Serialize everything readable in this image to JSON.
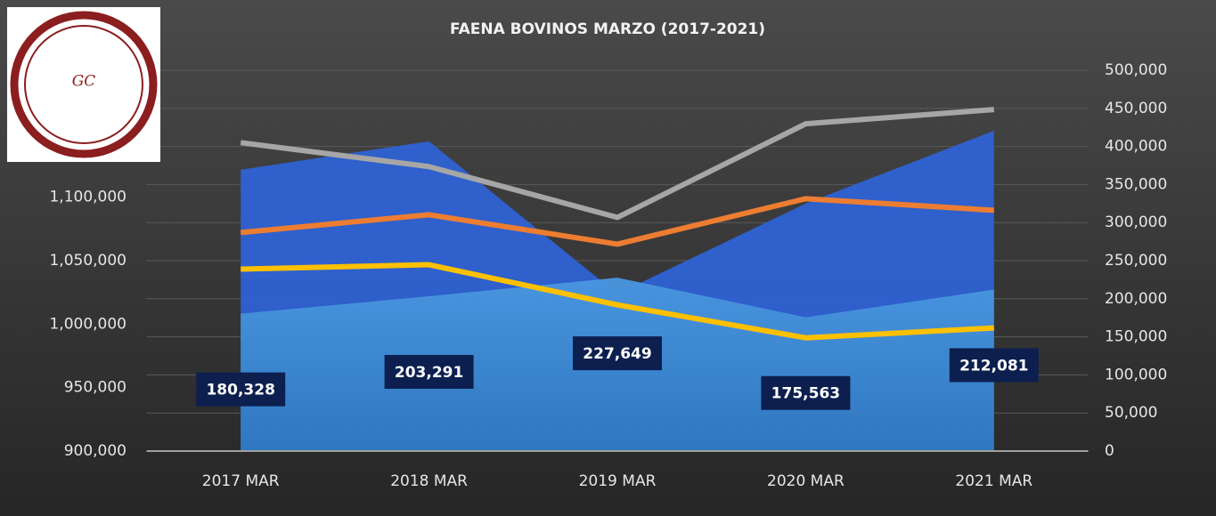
{
  "chart_data": {
    "type": "area-line",
    "title": "FAENA BOVINOS MARZO (2017-2021)",
    "logo_text": "GC",
    "categories": [
      "2017 MAR",
      "2018 MAR",
      "2019 MAR",
      "2020 MAR",
      "2021 MAR"
    ],
    "ylim": [
      900000,
      1200000
    ],
    "yticks": [
      {
        "value": 900000,
        "label": "900,000"
      },
      {
        "value": 950000,
        "label": "950,000"
      },
      {
        "value": 1000000,
        "label": "1,000,000"
      },
      {
        "value": 1050000,
        "label": "1,050,000"
      },
      {
        "value": 1100000,
        "label": "1,100,000"
      }
    ],
    "y2lim": [
      0,
      500000
    ],
    "y2ticks": [
      0,
      {
        "value": 50000,
        "label": "50,000"
      },
      {
        "value": 100000,
        "label": "100,000"
      },
      {
        "value": 150000,
        "label": "150,000"
      },
      {
        "value": 200000,
        "label": "200,000"
      },
      {
        "value": 250000,
        "label": "250,000"
      },
      {
        "value": 300000,
        "label": "300,000"
      },
      {
        "value": 350000,
        "label": "350,000"
      },
      {
        "value": 400000,
        "label": "400,000"
      },
      {
        "value": 450000,
        "label": "450,000"
      },
      {
        "value": 500000,
        "label": "500,000"
      }
    ],
    "grid": true,
    "series": [
      {
        "kind": "area",
        "axis": "y",
        "color": "#2e62d4",
        "values": [
          1121700,
          1144000,
          1023800,
          1095000,
          1152400
        ]
      },
      {
        "kind": "area",
        "axis": "y2",
        "color": "#4a96e0",
        "values": [
          180328,
          203291,
          227649,
          175563,
          212081
        ],
        "value_labels": [
          "180,328",
          "203,291",
          "227,649",
          "175,563",
          "212,081"
        ]
      },
      {
        "kind": "line",
        "axis": "y2",
        "color": "#a6a6a6",
        "values": [
          405000,
          373500,
          306800,
          429700,
          448500
        ]
      },
      {
        "kind": "line",
        "axis": "y2",
        "color": "#ed7d31",
        "values": [
          286900,
          310300,
          271700,
          331400,
          316200
        ]
      },
      {
        "kind": "line",
        "axis": "y2",
        "color": "#ffc000",
        "values": [
          238900,
          244700,
          192000,
          148700,
          161600
        ]
      }
    ]
  }
}
